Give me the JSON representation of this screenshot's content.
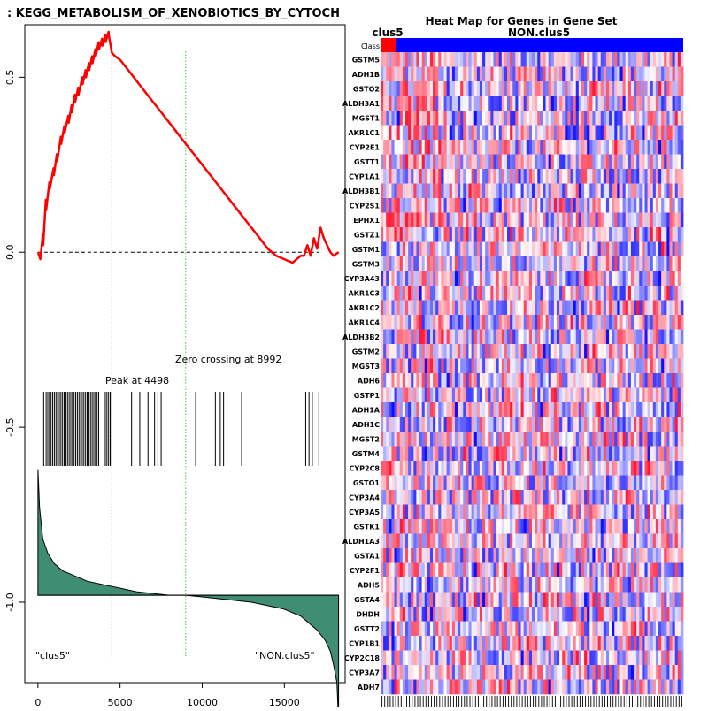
{
  "chart_data": [
    {
      "type": "line",
      "title": ": KEGG_METABOLISM_OF_XENOBIOTICS_BY_CYTOCH",
      "xlabel": "",
      "ylabel": "",
      "xlim": [
        -800,
        18700
      ],
      "ylim": [
        -1.23,
        0.65
      ],
      "x_ticks": [
        0,
        5000,
        10000,
        15000
      ],
      "x_tick_labels": [
        "0",
        "5000",
        "10000",
        "15000"
      ],
      "y_ticks": [
        0.5,
        0.0,
        -0.5,
        -1.0
      ],
      "y_tick_labels": [
        "0.5",
        "0.0",
        "-0.5",
        "-1.0"
      ],
      "peak": {
        "x": 4498,
        "label": "Peak at 4498",
        "color": "#cc3366"
      },
      "zero_crossing": {
        "x": 8992,
        "label": "Zero crossing at 8992",
        "color": "#33cc33"
      },
      "left_class_label": "\"clus5\"",
      "right_class_label": "\"NON.clus5\"",
      "enrichment_color": "#ff0000",
      "fill_color": "#3f8d72",
      "enrichment_score": {
        "x": [
          0,
          150,
          300,
          320,
          480,
          500,
          700,
          720,
          950,
          970,
          1150,
          1170,
          1400,
          1420,
          1600,
          1620,
          1850,
          1870,
          2050,
          2070,
          2250,
          2270,
          2450,
          2470,
          2700,
          2720,
          2900,
          2920,
          3100,
          3120,
          3300,
          3320,
          3500,
          3520,
          3700,
          3720,
          3900,
          3920,
          4100,
          4120,
          4300,
          4320,
          4498,
          4700,
          5000,
          5500,
          6000,
          6500,
          7000,
          7500,
          8000,
          8500,
          9000,
          9500,
          10000,
          10500,
          11000,
          11500,
          12000,
          12500,
          13000,
          13500,
          14000,
          14500,
          15000,
          15500,
          16000,
          16200,
          16400,
          16600,
          16800,
          17000,
          17200,
          17400,
          17600,
          17800,
          18000,
          18300
        ],
        "y": [
          0.0,
          -0.02,
          0.05,
          0.02,
          0.15,
          0.12,
          0.2,
          0.18,
          0.24,
          0.22,
          0.28,
          0.26,
          0.33,
          0.31,
          0.36,
          0.34,
          0.39,
          0.37,
          0.42,
          0.4,
          0.45,
          0.43,
          0.47,
          0.45,
          0.5,
          0.48,
          0.52,
          0.5,
          0.54,
          0.52,
          0.56,
          0.54,
          0.58,
          0.56,
          0.6,
          0.58,
          0.61,
          0.59,
          0.62,
          0.6,
          0.63,
          0.62,
          0.57,
          0.56,
          0.55,
          0.52,
          0.49,
          0.46,
          0.43,
          0.4,
          0.37,
          0.34,
          0.31,
          0.28,
          0.25,
          0.22,
          0.19,
          0.16,
          0.13,
          0.1,
          0.07,
          0.04,
          0.01,
          -0.01,
          -0.02,
          -0.03,
          -0.01,
          -0.01,
          0.02,
          -0.01,
          0.04,
          0.01,
          0.07,
          0.04,
          0.02,
          0.0,
          -0.01,
          0.0
        ]
      },
      "hit_positions": [
        350,
        500,
        600,
        700,
        800,
        900,
        1000,
        1100,
        1200,
        1300,
        1400,
        1500,
        1600,
        1700,
        1800,
        1900,
        2000,
        2100,
        2200,
        2300,
        2400,
        2500,
        2600,
        2700,
        2800,
        2900,
        3000,
        3100,
        3200,
        3300,
        3400,
        3500,
        3600,
        3700,
        4100,
        4200,
        4300,
        4400,
        4500,
        5700,
        6200,
        6700,
        7100,
        7300,
        7500,
        9600,
        10800,
        11100,
        11300,
        12400,
        16300,
        16500,
        16700,
        17100
      ],
      "ranked_metric": {
        "x": [
          0,
          100,
          300,
          600,
          1000,
          1500,
          2000,
          3000,
          4000,
          5000,
          6000,
          7000,
          8000,
          9000,
          10000,
          11000,
          12000,
          13000,
          14000,
          15000,
          15500,
          16000,
          16500,
          17000,
          17500,
          17800,
          18000,
          18200,
          18300
        ],
        "y": [
          0.36,
          0.25,
          0.16,
          0.12,
          0.09,
          0.07,
          0.06,
          0.04,
          0.03,
          0.02,
          0.01,
          0.005,
          0.0,
          0.0,
          -0.005,
          -0.01,
          -0.015,
          -0.02,
          -0.03,
          -0.04,
          -0.05,
          -0.06,
          -0.08,
          -0.1,
          -0.13,
          -0.16,
          -0.2,
          -0.25,
          -0.36
        ]
      },
      "ranked_metric_baseline_y": -0.98,
      "ranked_metric_unit_scale": 1.0
    },
    {
      "type": "heatmap",
      "title": "Heat Map for Genes in Gene Set",
      "class_label": "Class",
      "group_labels": [
        "clus5",
        "NON.clus5"
      ],
      "group_colors": [
        "#ff0000",
        "#0000ff"
      ],
      "group_fraction_clus5": 0.05,
      "rows": [
        "GSTM5",
        "ADH1B",
        "GSTO2",
        "ALDH3A1",
        "MGST1",
        "AKR1C1",
        "CYP2E1",
        "GSTT1",
        "CYP1A1",
        "ALDH3B1",
        "CYP2S1",
        "EPHX1",
        "GSTZ1",
        "GSTM1",
        "GSTM3",
        "CYP3A43",
        "AKR1C3",
        "AKR1C2",
        "AKR1C4",
        "ALDH3B2",
        "GSTM2",
        "MGST3",
        "ADH6",
        "GSTP1",
        "ADH1A",
        "ADH1C",
        "MGST2",
        "GSTM4",
        "CYP2C8",
        "GSTO1",
        "CYP3A4",
        "CYP3A5",
        "GSTK1",
        "ALDH1A3",
        "GSTA1",
        "CYP2F1",
        "ADH5",
        "GSTA4",
        "DHDH",
        "GSTT2",
        "CYP1B1",
        "CYP2C18",
        "CYP3A7",
        "ADH7"
      ],
      "n_columns": 110
    }
  ]
}
